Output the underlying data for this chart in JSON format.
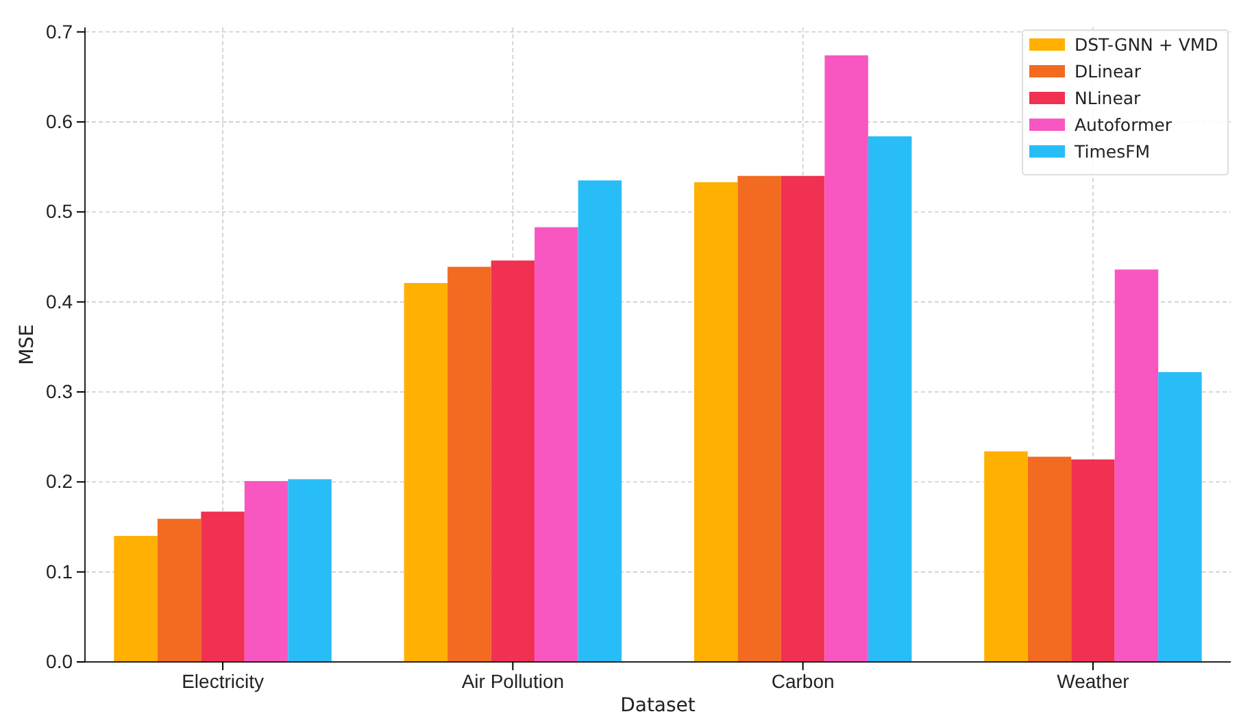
{
  "chart_data": {
    "type": "bar",
    "xlabel": "Dataset",
    "ylabel": "MSE",
    "categories": [
      "Electricity",
      "Air Pollution",
      "Carbon",
      "Weather"
    ],
    "series": [
      {
        "name": "DST-GNN + VMD",
        "color": "#ffb000",
        "values": [
          0.14,
          0.421,
          0.533,
          0.234
        ]
      },
      {
        "name": "DLinear",
        "color": "#f26b21",
        "values": [
          0.159,
          0.439,
          0.54,
          0.228
        ]
      },
      {
        "name": "NLinear",
        "color": "#f03152",
        "values": [
          0.167,
          0.446,
          0.54,
          0.225
        ]
      },
      {
        "name": "Autoformer",
        "color": "#f857c1",
        "values": [
          0.201,
          0.483,
          0.674,
          0.436
        ]
      },
      {
        "name": "TimesFM",
        "color": "#29bdf8",
        "values": [
          0.203,
          0.535,
          0.584,
          0.322
        ]
      }
    ],
    "ylim": [
      0,
      0.705
    ],
    "yticks": [
      {
        "value": 0,
        "label": "0.0"
      },
      0.1,
      0.2,
      0.3,
      0.4,
      0.5,
      0.6,
      0.7
    ],
    "grid": true,
    "legend": "top right"
  }
}
